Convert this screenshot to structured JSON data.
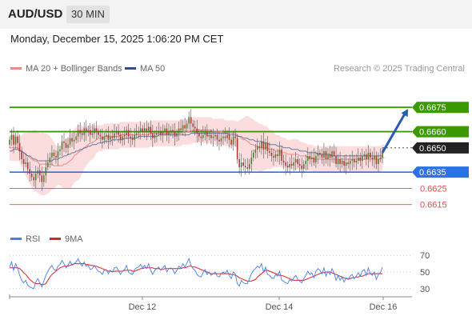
{
  "header": {
    "pair": "AUD/USD",
    "timeframe": "30 MIN"
  },
  "datetime": "Monday, December 15, 2025 1:06:20 PM CET",
  "legend": {
    "ma20_label": "MA 20 + Bollinger Bands",
    "ma50_label": "MA 50",
    "rsi_label": "RSI",
    "ma9_label": "9MA"
  },
  "credit": "Research © 2025 Trading Central",
  "colors": {
    "resistance": "#3c9a00",
    "support": "#2b72e6",
    "minor_level": "#e84848",
    "current": "#222222",
    "arrow": "#2a5bb0",
    "bollinger": "#fbd1d1",
    "ma20": "#ee8888",
    "ma50": "#2f4f86",
    "candle_up": "#4f7a28",
    "candle_down": "#b03030",
    "rsi": "#4a7fe0",
    "rsi_ma": "#dd2222"
  },
  "chart_data": [
    {
      "type": "candlestick",
      "title": "AUD/USD 30 MIN",
      "x_labels": [
        "Dec 12",
        "Dec 14",
        "Dec 16"
      ],
      "ylim": [
        0.6602,
        0.6683
      ],
      "levels": [
        {
          "label": "0.6675",
          "value": 0.6675,
          "kind": "resistance"
        },
        {
          "label": "0.6660",
          "value": 0.666,
          "kind": "resistance"
        },
        {
          "label": "0.6650",
          "value": 0.665,
          "kind": "current"
        },
        {
          "label": "0.6635",
          "value": 0.6635,
          "kind": "support"
        },
        {
          "label": "0.6625",
          "value": 0.6625,
          "kind": "minor"
        },
        {
          "label": "0.6615",
          "value": 0.6615,
          "kind": "minor"
        }
      ],
      "projection": {
        "from_price": 0.6647,
        "to_price": 0.6675
      },
      "closes": [
        0.6655,
        0.6658,
        0.6652,
        0.6657,
        0.6653,
        0.6648,
        0.6643,
        0.664,
        0.6641,
        0.6637,
        0.6634,
        0.6632,
        0.663,
        0.6634,
        0.6636,
        0.6633,
        0.6629,
        0.6633,
        0.6638,
        0.6641,
        0.6644,
        0.6647,
        0.6645,
        0.6644,
        0.6648,
        0.6649,
        0.6654,
        0.6653,
        0.665,
        0.6652,
        0.6656,
        0.6654,
        0.6655,
        0.6657,
        0.6661,
        0.6659,
        0.6658,
        0.6662,
        0.666,
        0.6661,
        0.6658,
        0.6659,
        0.6662,
        0.666,
        0.6658,
        0.6657,
        0.6655,
        0.6657,
        0.6658,
        0.6655,
        0.6657,
        0.6656,
        0.6659,
        0.666,
        0.6658,
        0.6655,
        0.6657,
        0.6658,
        0.6661,
        0.6657,
        0.6656,
        0.6655,
        0.6658,
        0.6659,
        0.666,
        0.6662,
        0.666,
        0.6662,
        0.666,
        0.6663,
        0.6659,
        0.6656,
        0.6658,
        0.6659,
        0.666,
        0.6658,
        0.666,
        0.6662,
        0.6658,
        0.666,
        0.6661,
        0.666,
        0.6657,
        0.6659,
        0.6662,
        0.6661,
        0.6664,
        0.6662,
        0.6665,
        0.6669,
        0.6665,
        0.6663,
        0.6662,
        0.6659,
        0.6657,
        0.6656,
        0.6658,
        0.666,
        0.6657,
        0.6658,
        0.6656,
        0.6657,
        0.6658,
        0.6655,
        0.6654,
        0.6656,
        0.6657,
        0.6656,
        0.6658,
        0.6655,
        0.6652,
        0.6657,
        0.6656,
        0.6643,
        0.6638,
        0.6641,
        0.6639,
        0.6638,
        0.6637,
        0.664,
        0.6644,
        0.6647,
        0.6649,
        0.6651,
        0.665,
        0.6654,
        0.6649,
        0.6653,
        0.6648,
        0.6647,
        0.6645,
        0.6644,
        0.6646,
        0.6645,
        0.6649,
        0.6642,
        0.6641,
        0.6639,
        0.6638,
        0.664,
        0.6639,
        0.6641,
        0.6643,
        0.664,
        0.6639,
        0.6637,
        0.664,
        0.6642,
        0.6645,
        0.6643,
        0.6644,
        0.6641,
        0.6645,
        0.6647,
        0.6646,
        0.6644,
        0.6648,
        0.6643,
        0.6646,
        0.6644,
        0.6648,
        0.6645,
        0.664,
        0.6643,
        0.664,
        0.6642,
        0.6639,
        0.6641,
        0.664,
        0.6642,
        0.6643,
        0.6641,
        0.6642,
        0.6644,
        0.6642,
        0.6645,
        0.6646,
        0.6643,
        0.6647,
        0.6644,
        0.6643,
        0.6645,
        0.664,
        0.6643,
        0.6644,
        0.6647
      ],
      "ma20": [
        0.665,
        0.665,
        0.665,
        0.665,
        0.665,
        0.6649,
        0.6648,
        0.6647,
        0.6646,
        0.6645,
        0.6644,
        0.6643,
        0.6642,
        0.6642,
        0.6641,
        0.664,
        0.664,
        0.664,
        0.664,
        0.664,
        0.664,
        0.664,
        0.6639,
        0.6639,
        0.6639,
        0.6639,
        0.6639,
        0.664,
        0.664,
        0.6641,
        0.6642,
        0.6643,
        0.6645,
        0.6646,
        0.6647,
        0.6648,
        0.6649,
        0.665,
        0.6651,
        0.6652,
        0.6653,
        0.6653,
        0.6654,
        0.6655,
        0.6656,
        0.6656,
        0.6656,
        0.6657,
        0.6657,
        0.6657,
        0.6657,
        0.6657,
        0.6657,
        0.6657,
        0.6657,
        0.6658,
        0.6658,
        0.6658,
        0.6658,
        0.6658,
        0.6658,
        0.6658,
        0.6658,
        0.6658,
        0.6658,
        0.6658,
        0.6658,
        0.6658,
        0.6658,
        0.6658,
        0.6659,
        0.6659,
        0.6659,
        0.6659,
        0.6659,
        0.6659,
        0.6659,
        0.6659,
        0.6659,
        0.6659,
        0.6659,
        0.6659,
        0.6659,
        0.6659,
        0.6659,
        0.6659,
        0.666,
        0.666,
        0.666,
        0.666,
        0.666,
        0.6661,
        0.6661,
        0.6661,
        0.6661,
        0.6661,
        0.6661,
        0.6661,
        0.6661,
        0.6661,
        0.6661,
        0.666,
        0.666,
        0.666,
        0.666,
        0.666,
        0.666,
        0.6659,
        0.6659,
        0.6659,
        0.6659,
        0.6659,
        0.6659,
        0.6658,
        0.6657,
        0.6656,
        0.6655,
        0.6655,
        0.6654,
        0.6653,
        0.6652,
        0.6652,
        0.6651,
        0.6651,
        0.665,
        0.665,
        0.665,
        0.665,
        0.665,
        0.6649,
        0.6649,
        0.6649,
        0.6648,
        0.6648,
        0.6648,
        0.6647,
        0.6647,
        0.6647,
        0.6646,
        0.6646,
        0.6646,
        0.6646,
        0.6646,
        0.6646,
        0.6645,
        0.6645,
        0.6645,
        0.6645,
        0.6644,
        0.6644,
        0.6644,
        0.6643,
        0.6643,
        0.6643,
        0.6643,
        0.6643,
        0.6643,
        0.6643,
        0.6643,
        0.6643,
        0.6643,
        0.6643,
        0.6643,
        0.6643,
        0.6643,
        0.6643,
        0.6643,
        0.6643,
        0.6643,
        0.6643,
        0.6643,
        0.6643,
        0.6643,
        0.6643,
        0.6643,
        0.6643,
        0.6643,
        0.6643,
        0.6643,
        0.6643,
        0.6643,
        0.6643,
        0.6643,
        0.6643,
        0.6643,
        0.6644,
        0.6644
      ],
      "ma50": [
        0.6648,
        0.6648,
        0.6649,
        0.6649,
        0.6649,
        0.6648,
        0.6648,
        0.6647,
        0.6646,
        0.6645,
        0.6645,
        0.6644,
        0.6643,
        0.6643,
        0.6642,
        0.6642,
        0.6642,
        0.6642,
        0.6642,
        0.6642,
        0.6642,
        0.6642,
        0.6643,
        0.6643,
        0.6643,
        0.6644,
        0.6644,
        0.6645,
        0.6645,
        0.6646,
        0.6646,
        0.6647,
        0.6647,
        0.6648,
        0.6648,
        0.6649,
        0.6649,
        0.665,
        0.665,
        0.6651,
        0.6651,
        0.6652,
        0.6652,
        0.6652,
        0.6653,
        0.6653,
        0.6653,
        0.6654,
        0.6654,
        0.6654,
        0.6654,
        0.6655,
        0.6655,
        0.6655,
        0.6655,
        0.6655,
        0.6655,
        0.6656,
        0.6656,
        0.6656,
        0.6656,
        0.6656,
        0.6656,
        0.6656,
        0.6657,
        0.6657,
        0.6657,
        0.6657,
        0.6657,
        0.6657,
        0.6657,
        0.6657,
        0.6657,
        0.6657,
        0.6658,
        0.6658,
        0.6658,
        0.6658,
        0.6658,
        0.6658,
        0.6658,
        0.6658,
        0.6658,
        0.6658,
        0.6658,
        0.6658,
        0.6658,
        0.6658,
        0.6658,
        0.6658,
        0.6659,
        0.6659,
        0.6659,
        0.6659,
        0.6659,
        0.6659,
        0.6659,
        0.6659,
        0.6659,
        0.6659,
        0.6659,
        0.6659,
        0.6659,
        0.6659,
        0.6659,
        0.6659,
        0.6659,
        0.6659,
        0.6659,
        0.6658,
        0.6658,
        0.6658,
        0.6658,
        0.6657,
        0.6657,
        0.6657,
        0.6656,
        0.6656,
        0.6656,
        0.6655,
        0.6655,
        0.6655,
        0.6654,
        0.6654,
        0.6654,
        0.6654,
        0.6653,
        0.6653,
        0.6653,
        0.6652,
        0.6652,
        0.6652,
        0.6652,
        0.6651,
        0.6651,
        0.6651,
        0.665,
        0.665,
        0.665,
        0.665,
        0.6649,
        0.6649,
        0.6649,
        0.6649,
        0.6648,
        0.6648,
        0.6648,
        0.6648,
        0.6647,
        0.6647,
        0.6647,
        0.6647,
        0.6647,
        0.6646,
        0.6646,
        0.6646,
        0.6646,
        0.6646,
        0.6646,
        0.6646,
        0.6645,
        0.6645,
        0.6645,
        0.6645,
        0.6645,
        0.6645,
        0.6645,
        0.6645,
        0.6645,
        0.6645,
        0.6645,
        0.6645,
        0.6645,
        0.6645,
        0.6645,
        0.6645,
        0.6645,
        0.6645,
        0.6645,
        0.6645,
        0.6645,
        0.6645,
        0.6645,
        0.6645,
        0.6645,
        0.6645
      ]
    },
    {
      "type": "line",
      "title": "RSI",
      "yticks": [
        70,
        50,
        30
      ],
      "ylim": [
        25,
        75
      ],
      "series": [
        {
          "name": "RSI",
          "values": [
            56,
            62,
            52,
            60,
            54,
            46,
            40,
            37,
            40,
            34,
            32,
            31,
            30,
            38,
            42,
            37,
            32,
            39,
            46,
            51,
            55,
            58,
            53,
            52,
            57,
            59,
            64,
            60,
            55,
            58,
            63,
            58,
            60,
            62,
            66,
            61,
            57,
            62,
            57,
            58,
            53,
            54,
            58,
            54,
            51,
            50,
            47,
            52,
            53,
            48,
            52,
            50,
            55,
            56,
            52,
            47,
            51,
            53,
            58,
            50,
            48,
            47,
            53,
            55,
            56,
            59,
            55,
            58,
            54,
            60,
            52,
            47,
            52,
            54,
            56,
            52,
            55,
            58,
            50,
            54,
            55,
            53,
            48,
            52,
            57,
            55,
            60,
            56,
            61,
            66,
            58,
            54,
            52,
            47,
            45,
            44,
            49,
            53,
            47,
            50,
            46,
            48,
            50,
            45,
            44,
            48,
            50,
            48,
            52,
            46,
            42,
            50,
            48,
            36,
            33,
            40,
            37,
            36,
            36,
            42,
            48,
            52,
            54,
            57,
            55,
            60,
            50,
            56,
            47,
            46,
            43,
            42,
            47,
            45,
            51,
            40,
            39,
            37,
            36,
            41,
            39,
            43,
            46,
            41,
            39,
            37,
            42,
            46,
            51,
            47,
            49,
            43,
            51,
            54,
            52,
            48,
            55,
            45,
            51,
            47,
            54,
            49,
            40,
            46,
            40,
            44,
            38,
            43,
            41,
            45,
            47,
            42,
            45,
            49,
            45,
            51,
            53,
            46,
            55,
            48,
            46,
            50,
            41,
            47,
            49,
            56
          ]
        },
        {
          "name": "9MA",
          "values": [
            55,
            55,
            55,
            55,
            55,
            54,
            52,
            49,
            47,
            44,
            41,
            39,
            37,
            36,
            36,
            36,
            35,
            35,
            36,
            40,
            44,
            47,
            49,
            51,
            53,
            55,
            56,
            57,
            57,
            57,
            58,
            59,
            60,
            60,
            60,
            60,
            60,
            60,
            59,
            59,
            58,
            58,
            57,
            57,
            56,
            55,
            54,
            53,
            52,
            51,
            51,
            50,
            51,
            51,
            51,
            51,
            51,
            52,
            52,
            52,
            52,
            51,
            51,
            52,
            53,
            54,
            54,
            55,
            55,
            55,
            55,
            55,
            54,
            54,
            54,
            53,
            53,
            54,
            54,
            54,
            54,
            54,
            54,
            54,
            54,
            54,
            55,
            55,
            56,
            57,
            57,
            56,
            56,
            55,
            54,
            53,
            52,
            51,
            50,
            49,
            48,
            48,
            48,
            48,
            48,
            48,
            48,
            48,
            48,
            48,
            47,
            47,
            46,
            45,
            43,
            42,
            41,
            40,
            39,
            39,
            39,
            40,
            41,
            44,
            46,
            48,
            50,
            52,
            52,
            51,
            50,
            49,
            48,
            47,
            46,
            46,
            45,
            44,
            43,
            42,
            41,
            40,
            40,
            40,
            40,
            40,
            40,
            41,
            42,
            43,
            44,
            45,
            46,
            47,
            48,
            49,
            49,
            50,
            50,
            50,
            49,
            48,
            47,
            46,
            45,
            44,
            43,
            42,
            42,
            42,
            43,
            43,
            44,
            44,
            45,
            45,
            46,
            47,
            48,
            48,
            48,
            48,
            48,
            48,
            48,
            48
          ]
        }
      ]
    }
  ]
}
